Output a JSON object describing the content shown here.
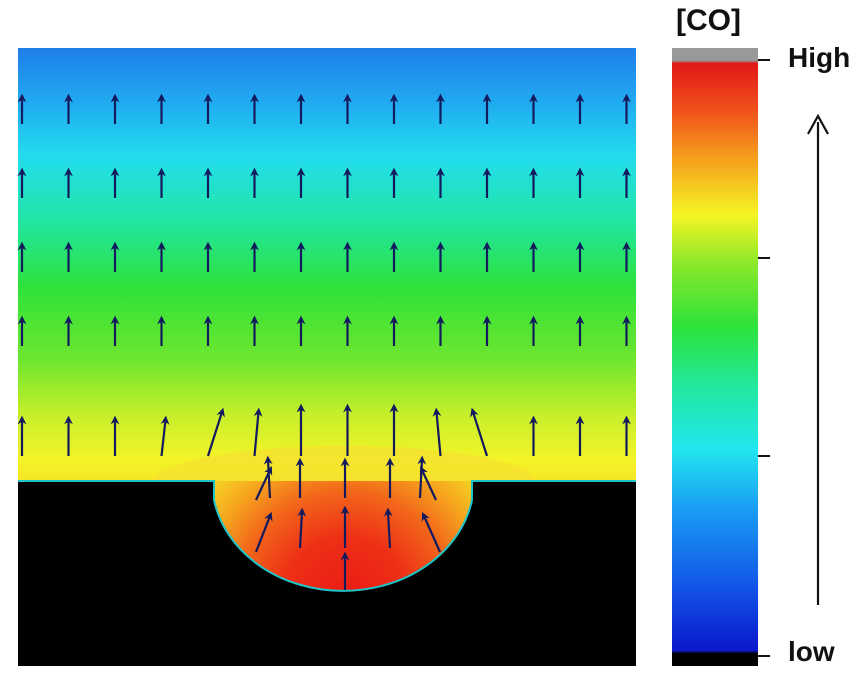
{
  "chart_data": {
    "type": "heatmap",
    "description_free": true,
    "colorbar": {
      "title": "[CO]",
      "high_label": "High",
      "low_label": "low",
      "stops": [
        "#000000",
        "#0a1fd8",
        "#1a6ff5",
        "#22d8f0",
        "#22e8a0",
        "#2ee23a",
        "#8ae82a",
        "#f5f524",
        "#f59a1c",
        "#f0461a",
        "#e01818",
        "#999999"
      ],
      "ticks": 3
    },
    "field": {
      "top_color": "#1e7ee8",
      "trench_color": "#ee2a1a",
      "solid_color": "#000000"
    },
    "arrows": {
      "color": "#141a5e",
      "direction": "up",
      "regular_rows": 4,
      "columns": 14
    }
  }
}
